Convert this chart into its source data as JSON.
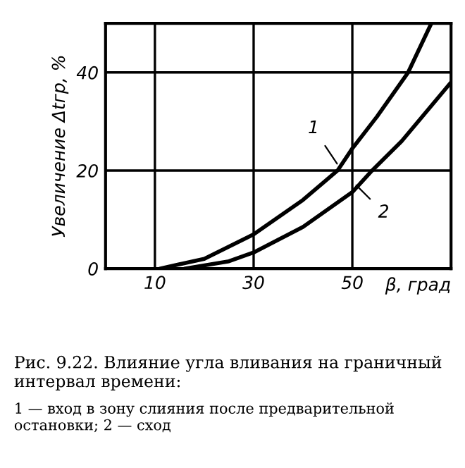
{
  "chart_data": {
    "type": "line",
    "xlabel": "β, град",
    "ylabel": "Увеличение Δtгр, %",
    "xlim": [
      0,
      70
    ],
    "xticks": [
      10,
      30,
      50
    ],
    "ylim": [
      0,
      50
    ],
    "yticks": [
      0,
      20,
      40
    ],
    "grid": true,
    "series": [
      {
        "color": "#000000",
        "x": [
          11,
          20,
          30,
          40,
          47,
          50,
          55,
          61.3,
          66
        ],
        "values": [
          0,
          2,
          7,
          14,
          20,
          24.5,
          31,
          40,
          50
        ]
      },
      {
        "color": "#000000",
        "x": [
          16,
          25,
          30,
          40,
          50,
          54,
          60,
          65,
          70
        ],
        "values": [
          0,
          1.5,
          3.3,
          8.5,
          15.6,
          20,
          26,
          32,
          38
        ]
      }
    ],
    "annotations": [
      {
        "text": "1",
        "x": 46.9,
        "y": 21.4
      },
      {
        "text": "2",
        "x": 50.8,
        "y": 17
      },
      "Рис. 9.22. Влияние угла вливания на граничный интервал времени:",
      "1 — вход в зону слияния после предварительной остановки; 2 — сход"
    ]
  }
}
